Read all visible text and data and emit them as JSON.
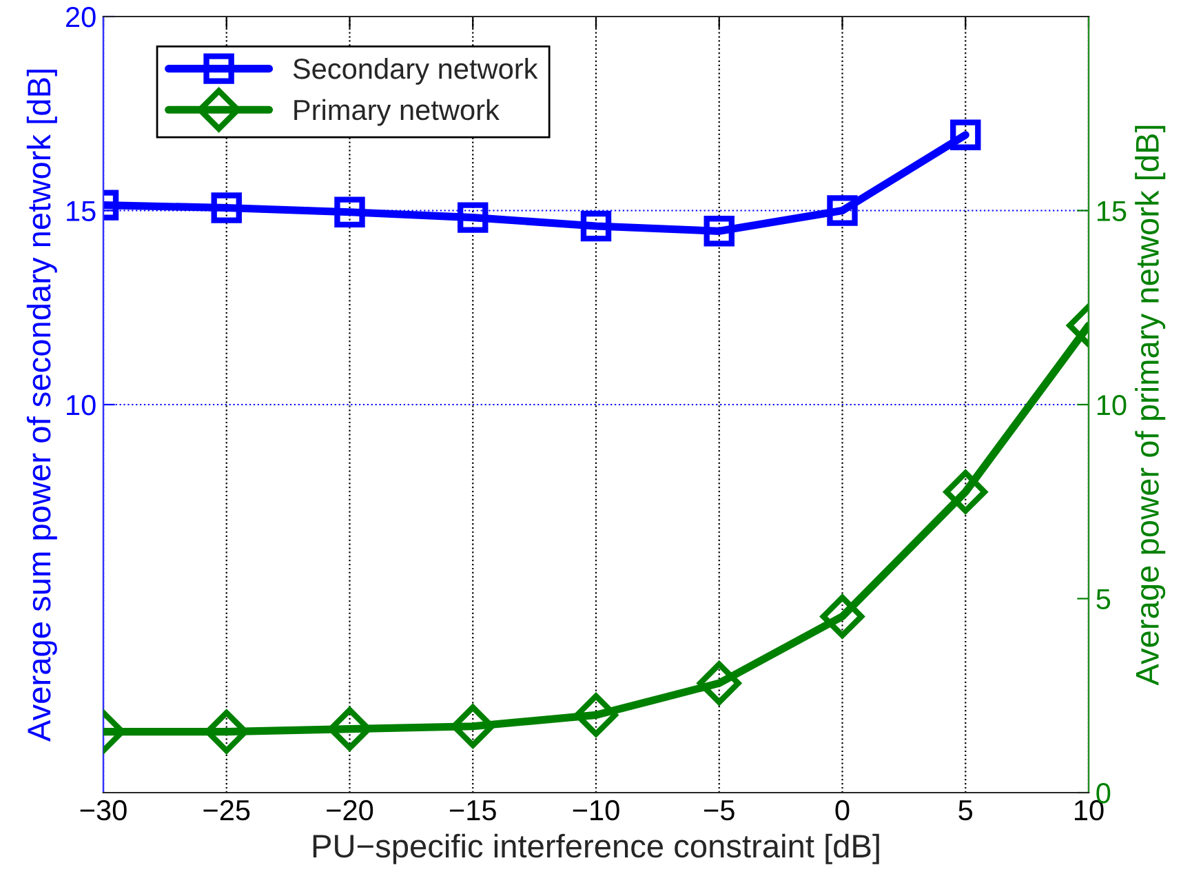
{
  "chart_data": {
    "type": "line",
    "xlabel": "PU−specific interference constraint [dB]",
    "ylabel": "Average sum power of secondary network [dB]",
    "y2label": "Average power of primary network [dB]",
    "x": [
      -30,
      -25,
      -20,
      -15,
      -10,
      -5,
      0,
      5,
      10
    ],
    "series": [
      {
        "name": "Secondary network",
        "color": "#0000ff",
        "marker": "square",
        "values": [
          15.14,
          15.07,
          14.96,
          14.82,
          14.6,
          14.47,
          15.0,
          16.95,
          null
        ]
      },
      {
        "name": "Primary network",
        "color": "#008000",
        "marker": "diamond",
        "axis": "y2",
        "values": [
          1.57,
          1.57,
          1.64,
          1.71,
          2.0,
          2.82,
          4.54,
          7.75,
          12.04
        ]
      }
    ],
    "xlim": [
      -30,
      10
    ],
    "xticks": [
      {
        "value": -30,
        "label": "−30"
      },
      {
        "value": -25,
        "label": "−25"
      },
      {
        "value": -20,
        "label": "−20"
      },
      {
        "value": -15,
        "label": "−15"
      },
      {
        "value": -10,
        "label": "−10"
      },
      {
        "value": -5,
        "label": "−5"
      },
      0,
      5,
      10
    ],
    "ylim": [
      0,
      20
    ],
    "yticks": [
      10,
      15,
      20
    ],
    "y2lim": [
      0,
      20
    ],
    "y2ticks": [
      0,
      5,
      10,
      15
    ],
    "grid": true,
    "legend": "top left",
    "line_style": "solid"
  }
}
